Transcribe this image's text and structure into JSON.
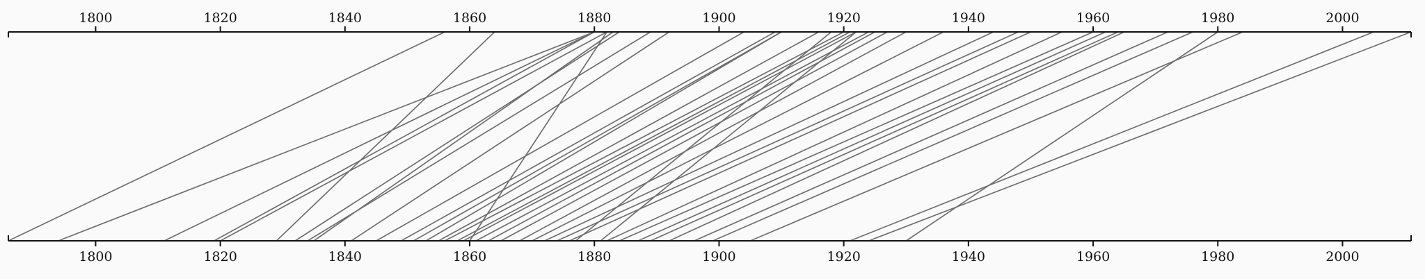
{
  "chart_data": {
    "type": "parallel-timeline",
    "title": "",
    "domain": [
      1786,
      2011
    ],
    "tick_values": [
      1800,
      1820,
      1840,
      1860,
      1880,
      1900,
      1920,
      1940,
      1960,
      1980,
      2000
    ],
    "tick_labels": [
      "1800",
      "1820",
      "1840",
      "1860",
      "1880",
      "1900",
      "1920",
      "1940",
      "1960",
      "1980",
      "2000"
    ],
    "top_axis": {
      "label": "",
      "position": "top"
    },
    "bottom_axis": {
      "label": "",
      "position": "bottom"
    },
    "links": [
      {
        "start": 1786,
        "end": 1856
      },
      {
        "start": 1794,
        "end": 1880
      },
      {
        "start": 1811,
        "end": 1880
      },
      {
        "start": 1819,
        "end": 1880
      },
      {
        "start": 1820,
        "end": 1882
      },
      {
        "start": 1829,
        "end": 1864
      },
      {
        "start": 1832,
        "end": 1884
      },
      {
        "start": 1834,
        "end": 1889
      },
      {
        "start": 1835,
        "end": 1883
      },
      {
        "start": 1841,
        "end": 1892
      },
      {
        "start": 1845,
        "end": 1904
      },
      {
        "start": 1849,
        "end": 1909
      },
      {
        "start": 1851,
        "end": 1910
      },
      {
        "start": 1853,
        "end": 1910
      },
      {
        "start": 1855,
        "end": 1916
      },
      {
        "start": 1856,
        "end": 1920
      },
      {
        "start": 1858,
        "end": 1921
      },
      {
        "start": 1859,
        "end": 1922
      },
      {
        "start": 1860,
        "end": 1882
      },
      {
        "start": 1861,
        "end": 1924
      },
      {
        "start": 1863,
        "end": 1925
      },
      {
        "start": 1865,
        "end": 1927
      },
      {
        "start": 1868,
        "end": 1930
      },
      {
        "start": 1870,
        "end": 1936
      },
      {
        "start": 1872,
        "end": 1944
      },
      {
        "start": 1874,
        "end": 1948
      },
      {
        "start": 1876,
        "end": 1950
      },
      {
        "start": 1877,
        "end": 1918
      },
      {
        "start": 1881,
        "end": 1922
      },
      {
        "start": 1882,
        "end": 1955
      },
      {
        "start": 1884,
        "end": 1960
      },
      {
        "start": 1887,
        "end": 1962
      },
      {
        "start": 1889,
        "end": 1964
      },
      {
        "start": 1892,
        "end": 1965
      },
      {
        "start": 1896,
        "end": 1972
      },
      {
        "start": 1899,
        "end": 1976
      },
      {
        "start": 1905,
        "end": 1984
      },
      {
        "start": 1921,
        "end": 2005
      },
      {
        "start": 1924,
        "end": 2011
      },
      {
        "start": 1930,
        "end": 1980
      }
    ]
  }
}
